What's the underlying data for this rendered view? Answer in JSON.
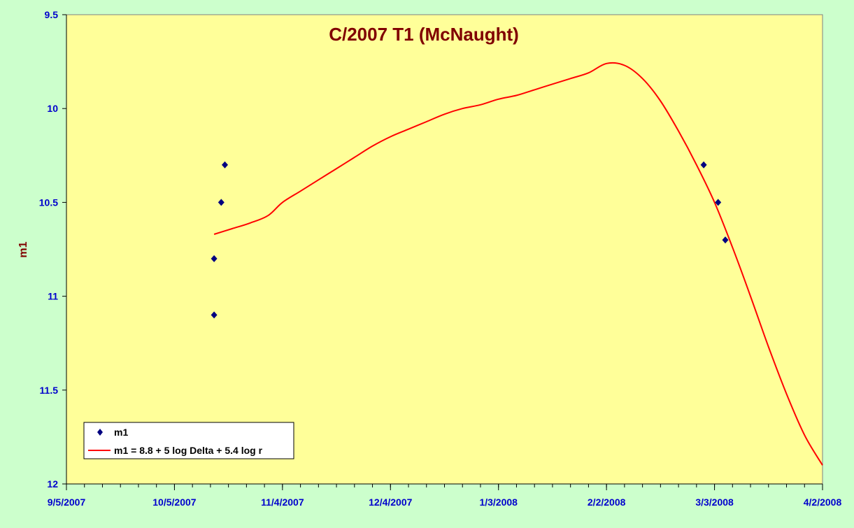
{
  "chart_data": {
    "type": "scatter",
    "title": "C/2007 T1 (McNaught)",
    "xlabel": "",
    "ylabel": "m1",
    "x_axis": {
      "type": "date",
      "min": "2007-09-05",
      "max": "2008-04-02",
      "tick_labels": [
        "9/5/2007",
        "10/5/2007",
        "11/4/2007",
        "12/4/2007",
        "1/3/2008",
        "2/2/2008",
        "3/3/2008",
        "4/2/2008"
      ],
      "tick_dates": [
        "2007-09-05",
        "2007-10-05",
        "2007-11-04",
        "2007-12-04",
        "2008-01-03",
        "2008-02-02",
        "2008-03-03",
        "2008-04-02"
      ],
      "minor_tick_interval_days": 5
    },
    "y_axis": {
      "reversed": true,
      "min": 9.5,
      "max": 12,
      "tick_labels": [
        "9.5",
        "10",
        "10.5",
        "11",
        "11.5",
        "12"
      ],
      "tick_values": [
        9.5,
        10,
        10.5,
        11,
        11.5,
        12
      ]
    },
    "grid": false,
    "legend_position": "bottom-left",
    "plot_background": "#ffff99",
    "series": [
      {
        "name": "m1",
        "kind": "scatter",
        "marker": "diamond",
        "color": "#000080",
        "points": [
          {
            "x": "2007-10-16",
            "y": 10.8
          },
          {
            "x": "2007-10-16",
            "y": 11.1
          },
          {
            "x": "2007-10-18",
            "y": 10.5
          },
          {
            "x": "2007-10-19",
            "y": 10.3
          },
          {
            "x": "2008-02-29",
            "y": 10.3
          },
          {
            "x": "2008-03-04",
            "y": 10.5
          },
          {
            "x": "2008-03-06",
            "y": 10.7
          }
        ]
      },
      {
        "name": "m1 = 8.8 + 5 log Delta + 5.4 log r",
        "kind": "line",
        "color": "#ff0000",
        "points": [
          {
            "x": "2007-10-16",
            "y": 10.67
          },
          {
            "x": "2007-10-21",
            "y": 10.64
          },
          {
            "x": "2007-10-26",
            "y": 10.61
          },
          {
            "x": "2007-10-31",
            "y": 10.57
          },
          {
            "x": "2007-11-04",
            "y": 10.5
          },
          {
            "x": "2007-11-09",
            "y": 10.44
          },
          {
            "x": "2007-11-14",
            "y": 10.38
          },
          {
            "x": "2007-11-19",
            "y": 10.32
          },
          {
            "x": "2007-11-24",
            "y": 10.26
          },
          {
            "x": "2007-11-29",
            "y": 10.2
          },
          {
            "x": "2007-12-04",
            "y": 10.15
          },
          {
            "x": "2007-12-09",
            "y": 10.11
          },
          {
            "x": "2007-12-14",
            "y": 10.07
          },
          {
            "x": "2007-12-19",
            "y": 10.03
          },
          {
            "x": "2007-12-24",
            "y": 10.0
          },
          {
            "x": "2007-12-29",
            "y": 9.98
          },
          {
            "x": "2008-01-03",
            "y": 9.95
          },
          {
            "x": "2008-01-08",
            "y": 9.93
          },
          {
            "x": "2008-01-13",
            "y": 9.9
          },
          {
            "x": "2008-01-18",
            "y": 9.87
          },
          {
            "x": "2008-01-23",
            "y": 9.84
          },
          {
            "x": "2008-01-28",
            "y": 9.81
          },
          {
            "x": "2008-02-02",
            "y": 9.76
          },
          {
            "x": "2008-02-07",
            "y": 9.77
          },
          {
            "x": "2008-02-12",
            "y": 9.84
          },
          {
            "x": "2008-02-17",
            "y": 9.96
          },
          {
            "x": "2008-02-22",
            "y": 10.12
          },
          {
            "x": "2008-02-27",
            "y": 10.3
          },
          {
            "x": "2008-03-03",
            "y": 10.5
          },
          {
            "x": "2008-03-08",
            "y": 10.74
          },
          {
            "x": "2008-03-13",
            "y": 11.0
          },
          {
            "x": "2008-03-18",
            "y": 11.27
          },
          {
            "x": "2008-03-23",
            "y": 11.52
          },
          {
            "x": "2008-03-28",
            "y": 11.74
          },
          {
            "x": "2008-04-02",
            "y": 11.9
          }
        ]
      }
    ]
  }
}
